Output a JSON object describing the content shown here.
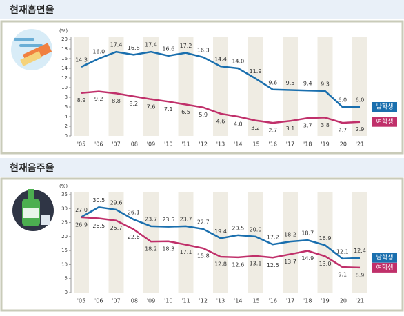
{
  "chart_data": [
    {
      "type": "line",
      "title": "현재흡연율",
      "y_unit": "(%)",
      "categories": [
        "'05",
        "'06",
        "'07",
        "'08",
        "'09",
        "'10",
        "'11",
        "'12",
        "'13",
        "'14",
        "'15",
        "'16",
        "'17",
        "'18",
        "'19",
        "'20",
        "'21"
      ],
      "ylim": [
        0,
        20
      ],
      "yticks": [
        0,
        2,
        4,
        6,
        8,
        10,
        12,
        14,
        16,
        18,
        20
      ],
      "series": [
        {
          "name": "남학생",
          "color": "#1a6fae",
          "values": [
            14.3,
            16.0,
            17.4,
            16.8,
            17.4,
            16.6,
            17.2,
            16.3,
            14.4,
            14.0,
            11.9,
            9.6,
            9.5,
            9.4,
            9.3,
            6.0,
            6.0
          ],
          "value_labels": [
            "14.3",
            "16.0",
            "17.4",
            "16.8",
            "17.4",
            "16.6",
            "17.2",
            "16.3",
            "14.4",
            "14.0",
            "11.9",
            "9.6",
            "9.5",
            "9.4",
            "9.3",
            "6.0",
            "6.0"
          ]
        },
        {
          "name": "여학생",
          "color": "#c0306a",
          "values": [
            8.9,
            9.2,
            8.8,
            8.2,
            7.6,
            7.1,
            6.5,
            5.9,
            4.6,
            4.0,
            3.2,
            2.7,
            3.1,
            3.7,
            3.8,
            2.7,
            2.9
          ],
          "value_labels": [
            "8.9",
            "9.2",
            "8.8",
            "8.2",
            "7.6",
            "7.1",
            "6.5",
            "5.9",
            "4.6",
            "4.0",
            "3.2",
            "2.7",
            "3.1",
            "3.7",
            "3.8",
            "2.7",
            "2.9"
          ]
        }
      ]
    },
    {
      "type": "line",
      "title": "현재음주율",
      "y_unit": "(%)",
      "categories": [
        "'05",
        "'06",
        "'07",
        "'08",
        "'09",
        "'10",
        "'11",
        "'12",
        "'13",
        "'14",
        "'15",
        "'16",
        "'17",
        "'18",
        "'19",
        "'20",
        "'21"
      ],
      "ylim": [
        0,
        35
      ],
      "yticks": [
        0,
        5,
        10,
        15,
        20,
        25,
        30,
        35
      ],
      "series": [
        {
          "name": "남학생",
          "color": "#1a6fae",
          "values": [
            27.0,
            30.5,
            29.6,
            26.1,
            23.7,
            23.5,
            23.7,
            22.7,
            19.4,
            20.5,
            20.0,
            17.2,
            18.2,
            18.7,
            16.9,
            12.1,
            12.4
          ],
          "value_labels": [
            "27.0",
            "30.5",
            "29.6",
            "26.1",
            "23.7",
            "23.5",
            "23.7",
            "22.7",
            "19.4",
            "20.5",
            "20.0",
            "17.2",
            "18.2",
            "18.7",
            "16.9",
            "12.1",
            "12.4"
          ]
        },
        {
          "name": "여학생",
          "color": "#c0306a",
          "values": [
            26.9,
            26.5,
            25.7,
            22.6,
            18.2,
            18.3,
            17.1,
            15.8,
            12.8,
            12.6,
            13.1,
            12.5,
            13.7,
            14.9,
            13.0,
            9.1,
            8.9
          ],
          "value_labels": [
            "26.9",
            "26.5",
            "25.7",
            "22.6",
            "18.2",
            "18.3",
            "17.1",
            "15.8",
            "12.8",
            "12.6",
            "13.1",
            "12.5",
            "13.7",
            "14.9",
            "13.0",
            "9.1",
            "8.9"
          ]
        }
      ]
    }
  ]
}
